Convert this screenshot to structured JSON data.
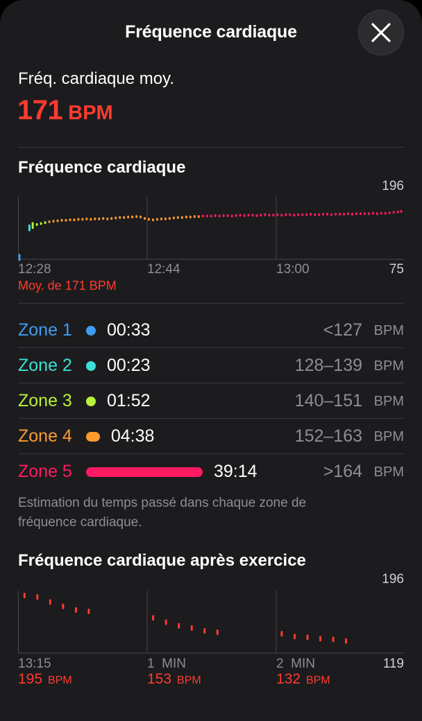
{
  "header": {
    "title": "Fréquence cardiaque"
  },
  "average": {
    "label": "Fréq. cardiaque moy.",
    "value": "171",
    "unit": "BPM"
  },
  "hr_section": {
    "title": "Fréquence cardiaque",
    "max_label": "196",
    "min_label": "75",
    "x_labels": [
      "12:28",
      "12:44",
      "13:00"
    ],
    "avg_note": "Moy. de 171 BPM"
  },
  "zones": [
    {
      "name": "Zone 1",
      "time": "00:33",
      "range": "<127",
      "unit": "BPM",
      "color": "#3e9df0",
      "minutes": 0.55
    },
    {
      "name": "Zone 2",
      "time": "00:23",
      "range": "128–139",
      "unit": "BPM",
      "color": "#3ce0d6",
      "minutes": 0.38
    },
    {
      "name": "Zone 3",
      "time": "01:52",
      "range": "140–151",
      "unit": "BPM",
      "color": "#b7f23a",
      "minutes": 1.87
    },
    {
      "name": "Zone 4",
      "time": "04:38",
      "range": "152–163",
      "unit": "BPM",
      "color": "#ff9a2e",
      "minutes": 4.63
    },
    {
      "name": "Zone 5",
      "time": "39:14",
      "range": ">164",
      "unit": "BPM",
      "color": "#ff1a62",
      "minutes": 39.23
    }
  ],
  "footnote": "Estimation du temps passé dans chaque zone de fréquence cardiaque.",
  "recovery": {
    "title": "Fréquence cardiaque après exercice",
    "max_label": "196",
    "min_label": "119",
    "x_labels": [
      "13:15",
      "1  MIN",
      "2  MIN"
    ],
    "values": [
      {
        "value": "195",
        "unit": "BPM"
      },
      {
        "value": "153",
        "unit": "BPM"
      },
      {
        "value": "132",
        "unit": "BPM"
      }
    ]
  },
  "chart_data": [
    {
      "type": "scatter",
      "title": "Fréquence cardiaque",
      "x_ticks": [
        "12:28",
        "12:44",
        "13:00"
      ],
      "ylim": [
        75,
        196
      ],
      "points": [
        {
          "t": 0,
          "bpm": 76
        },
        {
          "t": 1.2,
          "bpm": 139
        },
        {
          "t": 1.6,
          "bpm": 144
        },
        {
          "t": 2.1,
          "bpm": 146
        },
        {
          "t": 2.6,
          "bpm": 148
        },
        {
          "t": 3.1,
          "bpm": 150
        },
        {
          "t": 3.6,
          "bpm": 152
        },
        {
          "t": 4.1,
          "bpm": 153
        },
        {
          "t": 4.6,
          "bpm": 154
        },
        {
          "t": 5.1,
          "bpm": 155
        },
        {
          "t": 5.6,
          "bpm": 155
        },
        {
          "t": 6.1,
          "bpm": 156
        },
        {
          "t": 6.6,
          "bpm": 156
        },
        {
          "t": 7.1,
          "bpm": 157
        },
        {
          "t": 7.6,
          "bpm": 157
        },
        {
          "t": 8.1,
          "bpm": 158
        },
        {
          "t": 8.6,
          "bpm": 157
        },
        {
          "t": 9.1,
          "bpm": 158
        },
        {
          "t": 9.6,
          "bpm": 158
        },
        {
          "t": 10.1,
          "bpm": 159
        },
        {
          "t": 10.6,
          "bpm": 158
        },
        {
          "t": 11.1,
          "bpm": 159
        },
        {
          "t": 11.6,
          "bpm": 160
        },
        {
          "t": 12.1,
          "bpm": 161
        },
        {
          "t": 12.6,
          "bpm": 161
        },
        {
          "t": 13.1,
          "bpm": 162
        },
        {
          "t": 13.6,
          "bpm": 162
        },
        {
          "t": 14.1,
          "bpm": 163
        },
        {
          "t": 14.6,
          "bpm": 162
        },
        {
          "t": 15.1,
          "bpm": 159
        },
        {
          "t": 15.6,
          "bpm": 157
        },
        {
          "t": 16.1,
          "bpm": 156
        },
        {
          "t": 16.6,
          "bpm": 157
        },
        {
          "t": 17.1,
          "bpm": 158
        },
        {
          "t": 17.6,
          "bpm": 158
        },
        {
          "t": 18.1,
          "bpm": 159
        },
        {
          "t": 18.6,
          "bpm": 160
        },
        {
          "t": 19.1,
          "bpm": 161
        },
        {
          "t": 19.6,
          "bpm": 161
        },
        {
          "t": 20.1,
          "bpm": 162
        },
        {
          "t": 20.6,
          "bpm": 162
        },
        {
          "t": 21.1,
          "bpm": 163
        },
        {
          "t": 21.6,
          "bpm": 163
        },
        {
          "t": 22.1,
          "bpm": 164
        },
        {
          "t": 22.6,
          "bpm": 164
        },
        {
          "t": 23.1,
          "bpm": 164
        },
        {
          "t": 23.6,
          "bpm": 165
        },
        {
          "t": 24.1,
          "bpm": 164
        },
        {
          "t": 24.6,
          "bpm": 165
        },
        {
          "t": 25.1,
          "bpm": 165
        },
        {
          "t": 25.6,
          "bpm": 164
        },
        {
          "t": 26.1,
          "bpm": 165
        },
        {
          "t": 26.6,
          "bpm": 166
        },
        {
          "t": 27.1,
          "bpm": 165
        },
        {
          "t": 27.6,
          "bpm": 166
        },
        {
          "t": 28.1,
          "bpm": 166
        },
        {
          "t": 28.6,
          "bpm": 165
        },
        {
          "t": 29.1,
          "bpm": 166
        },
        {
          "t": 29.6,
          "bpm": 167
        },
        {
          "t": 30.1,
          "bpm": 166
        },
        {
          "t": 30.6,
          "bpm": 166
        },
        {
          "t": 31.1,
          "bpm": 167
        },
        {
          "t": 31.6,
          "bpm": 166
        },
        {
          "t": 32.1,
          "bpm": 167
        },
        {
          "t": 32.6,
          "bpm": 167
        },
        {
          "t": 33.1,
          "bpm": 166
        },
        {
          "t": 33.6,
          "bpm": 167
        },
        {
          "t": 34.1,
          "bpm": 167
        },
        {
          "t": 34.6,
          "bpm": 167
        },
        {
          "t": 35.1,
          "bpm": 168
        },
        {
          "t": 35.6,
          "bpm": 167
        },
        {
          "t": 36.1,
          "bpm": 167
        },
        {
          "t": 36.6,
          "bpm": 168
        },
        {
          "t": 37.1,
          "bpm": 168
        },
        {
          "t": 37.6,
          "bpm": 167
        },
        {
          "t": 38.1,
          "bpm": 168
        },
        {
          "t": 38.6,
          "bpm": 168
        },
        {
          "t": 39.1,
          "bpm": 168
        },
        {
          "t": 39.6,
          "bpm": 169
        },
        {
          "t": 40.1,
          "bpm": 168
        },
        {
          "t": 40.6,
          "bpm": 169
        },
        {
          "t": 41.1,
          "bpm": 169
        },
        {
          "t": 41.6,
          "bpm": 169
        },
        {
          "t": 42.1,
          "bpm": 169
        },
        {
          "t": 42.6,
          "bpm": 170
        },
        {
          "t": 43.1,
          "bpm": 169
        },
        {
          "t": 43.6,
          "bpm": 170
        },
        {
          "t": 44.1,
          "bpm": 170
        },
        {
          "t": 44.6,
          "bpm": 171
        },
        {
          "t": 45.1,
          "bpm": 172
        },
        {
          "t": 45.6,
          "bpm": 173
        },
        {
          "t": 46.0,
          "bpm": 174
        }
      ]
    },
    {
      "type": "scatter",
      "title": "Fréquence cardiaque après exercice",
      "x_ticks": [
        "13:15",
        "1  MIN",
        "2  MIN"
      ],
      "ylim": [
        119,
        196
      ],
      "points": [
        {
          "t": 0.05,
          "bpm": 195
        },
        {
          "t": 0.15,
          "bpm": 193
        },
        {
          "t": 0.25,
          "bpm": 186
        },
        {
          "t": 0.35,
          "bpm": 180
        },
        {
          "t": 0.45,
          "bpm": 175
        },
        {
          "t": 0.55,
          "bpm": 173
        },
        {
          "t": 1.05,
          "bpm": 164
        },
        {
          "t": 1.15,
          "bpm": 158
        },
        {
          "t": 1.25,
          "bpm": 153
        },
        {
          "t": 1.35,
          "bpm": 150
        },
        {
          "t": 1.45,
          "bpm": 146
        },
        {
          "t": 1.55,
          "bpm": 144
        },
        {
          "t": 2.05,
          "bpm": 142
        },
        {
          "t": 2.15,
          "bpm": 138
        },
        {
          "t": 2.25,
          "bpm": 137
        },
        {
          "t": 2.35,
          "bpm": 135
        },
        {
          "t": 2.45,
          "bpm": 134
        },
        {
          "t": 2.55,
          "bpm": 132
        }
      ]
    }
  ]
}
